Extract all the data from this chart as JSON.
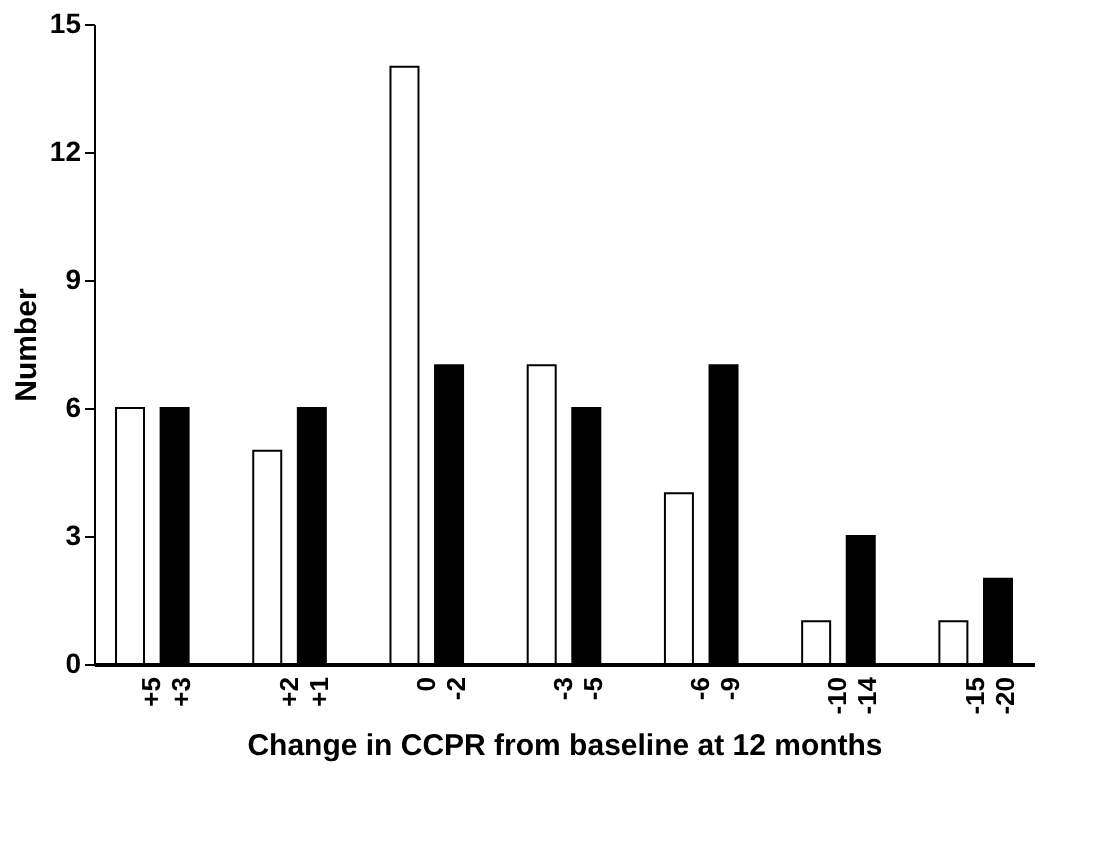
{
  "chart_data": {
    "type": "bar",
    "xlabel": "Change in CCPR from baseline at 12 months",
    "ylabel": "Number",
    "categories": [
      "+5 +3",
      "+2 +1",
      "0 -2",
      "-3 -5",
      "-6 -9",
      "-10 -14",
      "-15 -20"
    ],
    "series": [
      {
        "color": "#ffffff",
        "values": [
          6,
          5,
          14,
          7,
          4,
          1,
          1
        ]
      },
      {
        "color": "#000000",
        "values": [
          6,
          6,
          7,
          6,
          7,
          3,
          2
        ]
      }
    ],
    "ylim": [
      0,
      15
    ],
    "yticks": [
      0,
      3,
      6,
      9,
      12,
      15
    ],
    "grid": false
  }
}
